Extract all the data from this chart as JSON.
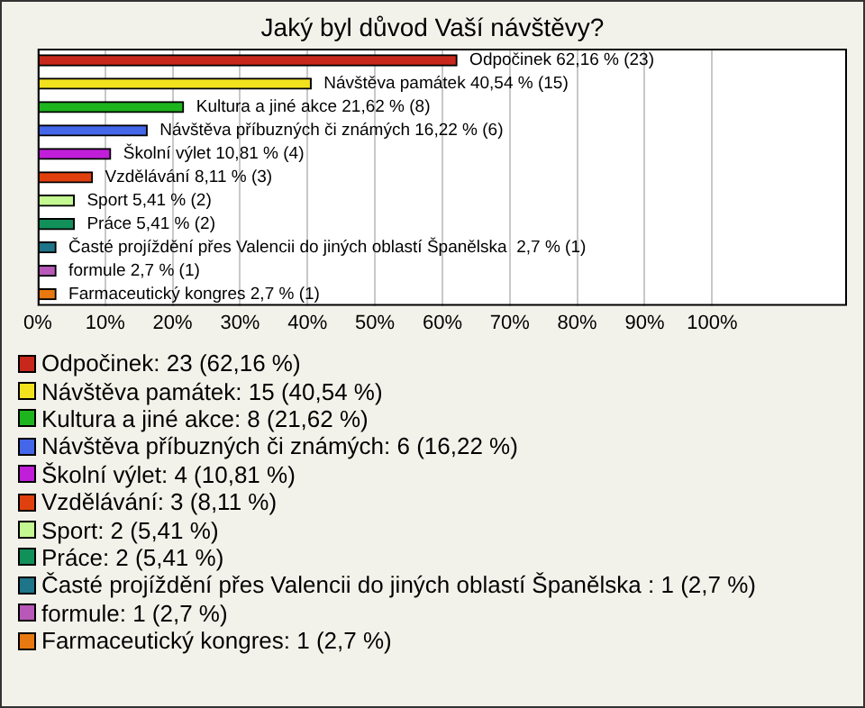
{
  "chart_data": {
    "type": "bar",
    "orientation": "horizontal",
    "title": "Jaký byl důvod Vaší návštěvy?",
    "categories": [
      "Odpočinek",
      "Návštěva památek",
      "Kultura a jiné akce",
      "Návštěva příbuzných či známých",
      "Školní výlet",
      "Vzdělávání",
      "Sport",
      "Práce",
      "Časté projíždění přes Valencii do jiných oblastí Španělska",
      "formule",
      "Farmaceutický kongres"
    ],
    "values": [
      62.16,
      40.54,
      21.62,
      16.22,
      10.81,
      8.11,
      5.41,
      5.41,
      2.7,
      2.7,
      2.7
    ],
    "colors": [
      "#c8281c",
      "#f2e21e",
      "#1eb41e",
      "#4466e8",
      "#c01ed8",
      "#e0400e",
      "#c4f890",
      "#12905a",
      "#1e7488",
      "#b858b8",
      "#e87810"
    ],
    "value_labels": [
      "62,16 % (23)",
      "40,54 % (15)",
      "21,62 % (8)",
      "16,22 % (6)",
      "10,81 % (4)",
      "8,11 % (3)",
      "5,41 % (2)",
      "5,41 % (2)",
      " 2,7 % (1)",
      "2,7 % (1)",
      "2,7 % (1)"
    ],
    "annotations": [
      ": 23 (62,16 %)",
      ": 15 (40,54 %)",
      ": 8 (21,62 %)",
      ": 6 (16,22 %)",
      ": 4 (10,81 %)",
      ": 3 (8,11 %)",
      ": 2 (5,41 %)",
      ": 2 (5,41 %)",
      " : 1 (2,7 %)",
      ": 1 (2,7 %)",
      ": 1 (2,7 %)"
    ],
    "xlim": [
      0,
      120
    ],
    "xticks": [
      {
        "value": 0,
        "label": "0%"
      },
      {
        "value": 10,
        "label": "10%"
      },
      {
        "value": 20,
        "label": "20%"
      },
      {
        "value": 30,
        "label": "30%"
      },
      {
        "value": 40,
        "label": "40%"
      },
      {
        "value": 50,
        "label": "50%"
      },
      {
        "value": 60,
        "label": "60%"
      },
      {
        "value": 70,
        "label": "70%"
      },
      {
        "value": 80,
        "label": "80%"
      },
      {
        "value": 90,
        "label": "90%"
      },
      {
        "value": 100,
        "label": "100%"
      }
    ],
    "tick_labels": "x",
    "grid": "x"
  }
}
